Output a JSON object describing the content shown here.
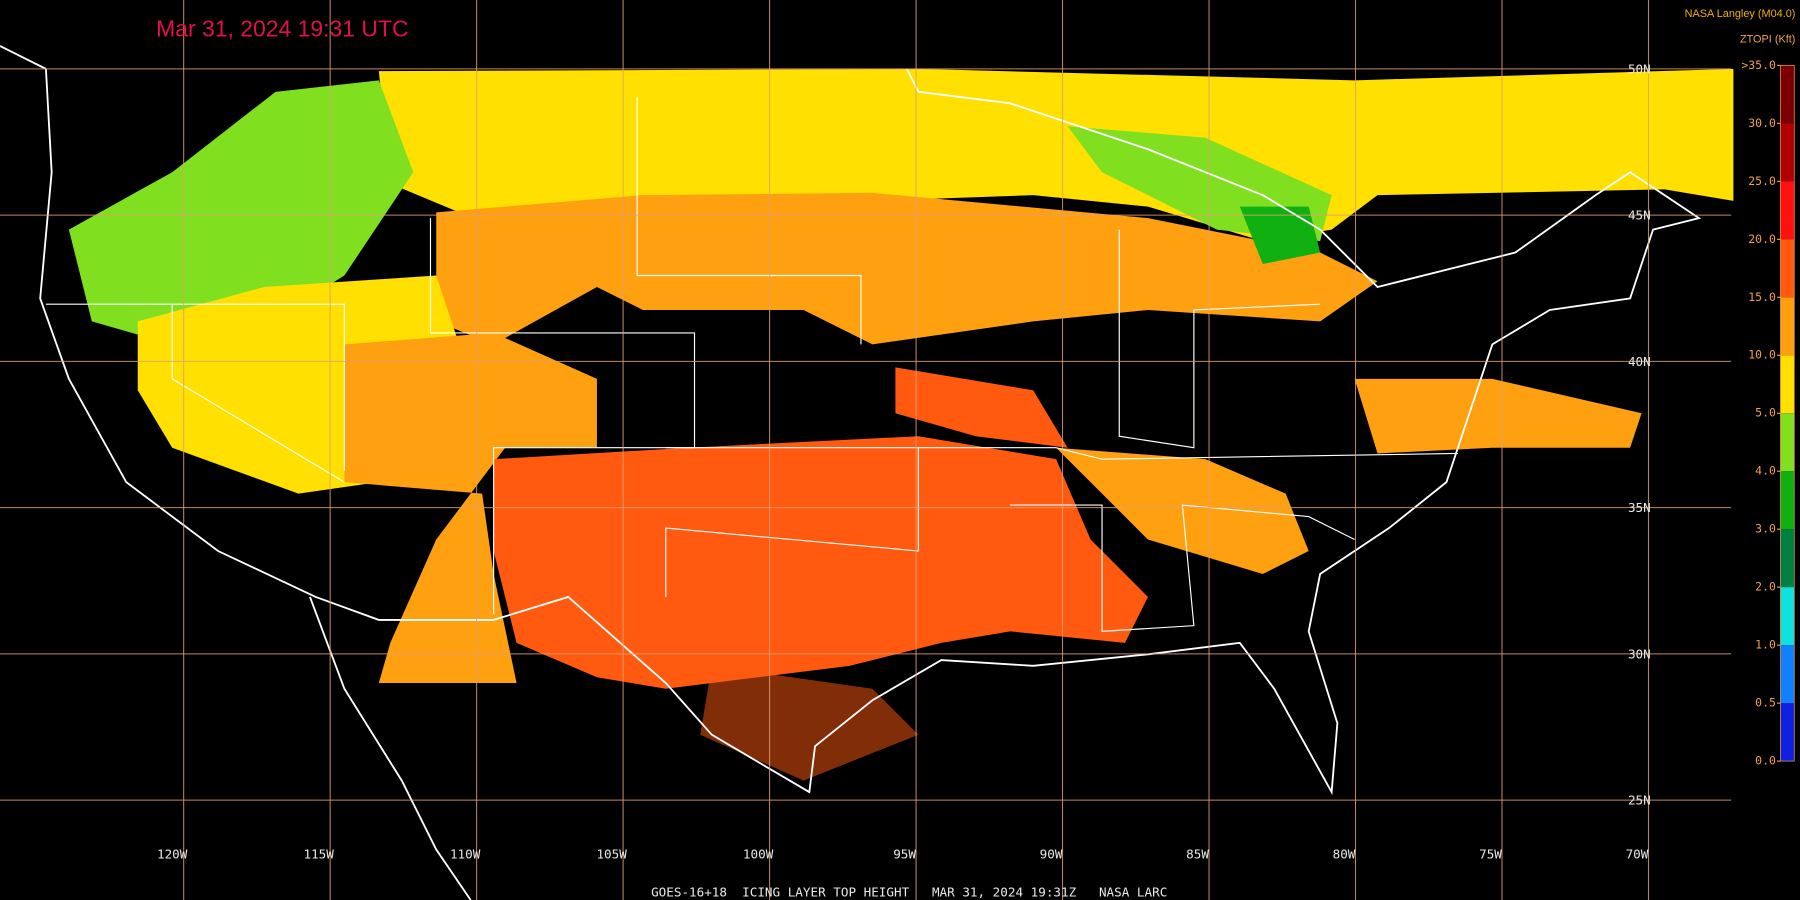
{
  "header": {
    "timestamp": "Mar 31, 2024 19:31 UTC",
    "source": "NASA Langley (M04.0)",
    "product": "ZTOPI (Kft)"
  },
  "colorbar": [
    {
      "label": ">35.0",
      "color": "#7a0000"
    },
    {
      "label": "30.0",
      "color": "#b00000"
    },
    {
      "label": "25.0",
      "color": "#ff1010"
    },
    {
      "label": "20.0",
      "color": "#ff5a10"
    },
    {
      "label": "15.0",
      "color": "#ffa010"
    },
    {
      "label": "10.0",
      "color": "#ffe000"
    },
    {
      "label": "5.0",
      "color": "#80e020"
    },
    {
      "label": "4.0",
      "color": "#10b010"
    },
    {
      "label": "3.0",
      "color": "#008040"
    },
    {
      "label": "2.0",
      "color": "#10e0e0"
    },
    {
      "label": "1.0",
      "color": "#1080ff"
    },
    {
      "label": "0.5",
      "color": "#1020e0"
    },
    {
      "label": "0.0",
      "color": "#9040e0"
    }
  ],
  "longitudes": [
    "120W",
    "115W",
    "110W",
    "105W",
    "100W",
    "95W",
    "90W",
    "85W",
    "80W",
    "75W",
    "70W"
  ],
  "latitudes": [
    "50N",
    "45N",
    "40N",
    "35N",
    "30N",
    "25N"
  ],
  "footer": "GOES-16+18  ICING LAYER TOP HEIGHT   MAR 31, 2024 19:31Z   NASA LARC"
}
